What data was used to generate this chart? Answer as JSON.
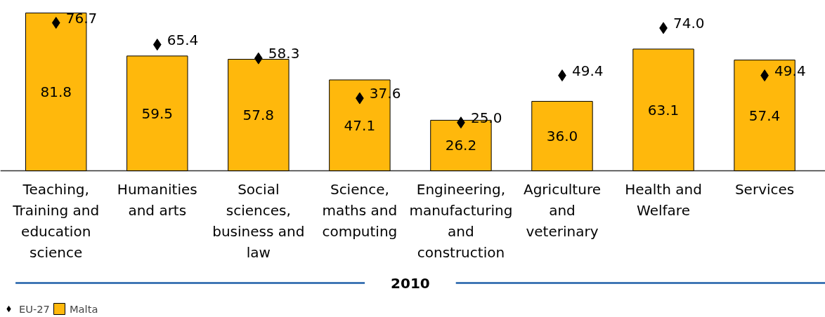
{
  "chart_data": {
    "type": "bar",
    "xlabel": "2010",
    "categories": [
      "Teaching, Training and education science",
      "Humanities and arts",
      "Social sciences, business and law",
      "Science, maths and computing",
      "Engineering, manufacturing and construction",
      "Agriculture and veterinary",
      "Health and Welfare",
      "Services"
    ],
    "series": [
      {
        "name": "EU-27",
        "type": "scatter",
        "color": "#000000",
        "values": [
          76.7,
          65.4,
          58.3,
          37.6,
          25.0,
          49.4,
          74.0,
          49.4
        ],
        "value_labels": [
          "76.7",
          "65.4",
          "58.3",
          "37.6",
          "25.0",
          "49.4",
          "74.0",
          "49.4"
        ]
      },
      {
        "name": "Malta",
        "color": "#ffb80c",
        "values": [
          81.8,
          59.5,
          57.8,
          47.1,
          26.2,
          36.0,
          63.1,
          57.4
        ],
        "value_labels": [
          "81.8",
          "59.5",
          "57.8",
          "47.1",
          "26.2",
          "36.0",
          "63.1",
          "57.4"
        ]
      }
    ],
    "marker": "diamond",
    "legend": "bottom left",
    "tick_labels": "x",
    "grid": false
  }
}
